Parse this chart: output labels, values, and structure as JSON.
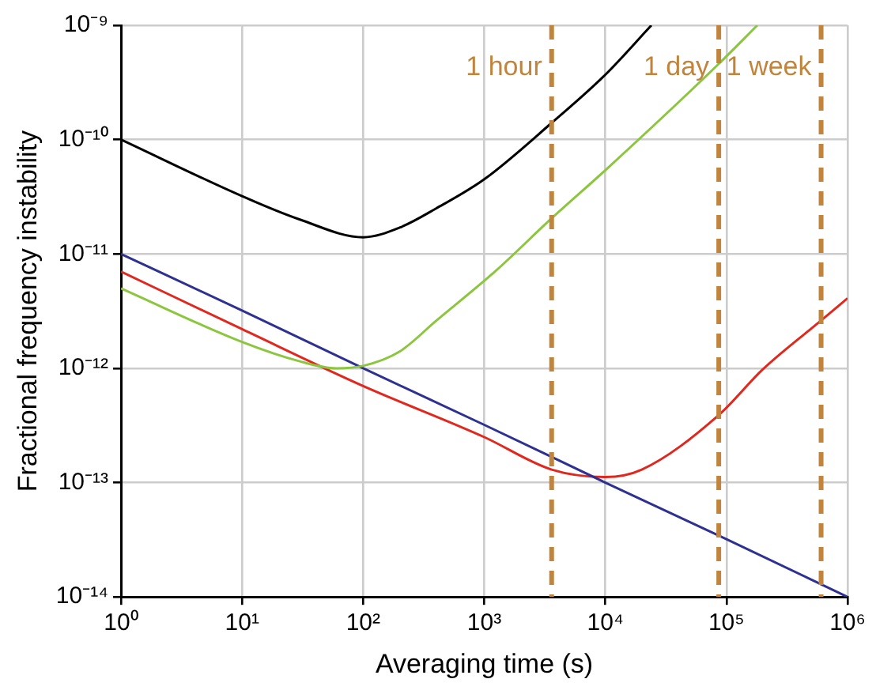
{
  "chart_data": {
    "type": "line",
    "xlabel": "Averaging time (s)",
    "ylabel": "Fractional frequency instability",
    "log": "xy",
    "grid": true,
    "legend": false,
    "marker": "none",
    "line_style": "solid",
    "xlim": [
      1,
      1000000
    ],
    "ylim": [
      1e-14,
      1e-09
    ],
    "xticks": [
      {
        "value": 1,
        "label": "10⁰"
      },
      {
        "value": 10,
        "label": "10¹"
      },
      {
        "value": 100,
        "label": "10²"
      },
      {
        "value": 1000,
        "label": "10³"
      },
      {
        "value": 10000,
        "label": "10⁴"
      },
      {
        "value": 100000,
        "label": "10⁵"
      },
      {
        "value": 1000000,
        "label": "10⁶"
      }
    ],
    "yticks": [
      {
        "value": 1e-14,
        "label": "10⁻¹⁴"
      },
      {
        "value": 1e-13,
        "label": "10⁻¹³"
      },
      {
        "value": 1e-12,
        "label": "10⁻¹²"
      },
      {
        "value": 1e-11,
        "label": "10⁻¹¹"
      },
      {
        "value": 1e-10,
        "label": "10⁻¹⁰"
      },
      {
        "value": 1e-09,
        "label": "10⁻⁹"
      }
    ],
    "series": [
      {
        "color": "#000000",
        "x": [
          1,
          10,
          30,
          100,
          200,
          400,
          1000,
          3600,
          10000,
          24000
        ],
        "values": [
          1e-10,
          3.2e-11,
          2e-11,
          1.4e-11,
          1.7e-11,
          2.5e-11,
          4.5e-11,
          1.4e-10,
          3.7e-10,
          1e-09
        ]
      },
      {
        "color": "#8cc63f",
        "x": [
          1,
          10,
          30,
          60,
          100,
          200,
          400,
          1260,
          3600,
          10000,
          86400,
          180000
        ],
        "values": [
          5e-12,
          1.7e-12,
          1.15e-12,
          1e-12,
          1.05e-12,
          1.4e-12,
          2.6e-12,
          7.2e-12,
          2.05e-11,
          5.4e-11,
          4.6e-10,
          1e-09
        ]
      },
      {
        "color": "#2e3192",
        "x": [
          1,
          10,
          100,
          1000,
          10000,
          100000,
          1000000
        ],
        "values": [
          1e-11,
          3.2e-12,
          1e-12,
          3.2e-13,
          1e-13,
          3.2e-14,
          1e-14
        ]
      },
      {
        "color": "#e0281e",
        "x": [
          1,
          10,
          100,
          1000,
          3600,
          10000,
          20000,
          86400,
          200000,
          600000,
          1000000
        ],
        "values": [
          7e-12,
          2.2e-12,
          7e-13,
          2.5e-13,
          1.3e-13,
          1.12e-13,
          1.3e-13,
          3.9e-13,
          9.8e-13,
          2.6e-12,
          4.1e-12
        ]
      }
    ],
    "ref_lines": [
      {
        "axis": "x",
        "value": 3600,
        "label": "1 hour",
        "color": "#c0843c",
        "line_style": "dashed"
      },
      {
        "axis": "x",
        "value": 86400,
        "label": "1 day",
        "color": "#c0843c",
        "line_style": "dashed"
      },
      {
        "axis": "x",
        "value": 604800,
        "label": "1 week",
        "color": "#c0843c",
        "line_style": "dashed"
      }
    ]
  }
}
